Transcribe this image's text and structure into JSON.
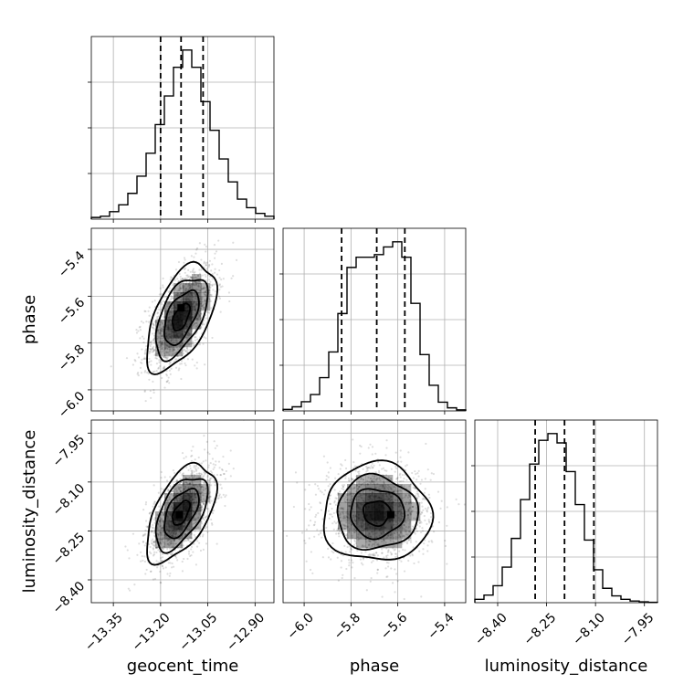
{
  "chart_data": {
    "type": "corner",
    "parameters": [
      {
        "name": "geocent_time",
        "label": "geocent_time",
        "ticks": [
          -13.35,
          -13.2,
          -13.05,
          -12.9
        ],
        "tick_labels": [
          "−13.35",
          "−13.20",
          "−13.05",
          "−12.90"
        ],
        "range": [
          -13.42,
          -12.84
        ],
        "quantiles": [
          -13.2,
          -13.135,
          -13.065
        ],
        "hist_edges_start": -13.42,
        "hist_bin_width": 0.029,
        "hist_counts": [
          0.3,
          0.5,
          1.3,
          2.5,
          4.5,
          7.5,
          11.5,
          16.5,
          21.5,
          26.5,
          29.5,
          26.5,
          20.5,
          15.5,
          10.5,
          6.5,
          3.5,
          2.0,
          1.0,
          0.5
        ]
      },
      {
        "name": "phase",
        "label": "phase",
        "ticks": [
          -6.0,
          -5.8,
          -5.6,
          -5.4
        ],
        "tick_labels": [
          "−6.0",
          "−5.8",
          "−5.6",
          "−5.4"
        ],
        "range": [
          -6.09,
          -5.31
        ],
        "quantiles": [
          -5.84,
          -5.69,
          -5.57
        ],
        "hist_edges_start": -6.09,
        "hist_bin_width": 0.039,
        "hist_counts": [
          0.3,
          0.8,
          1.8,
          3.2,
          6.5,
          11.5,
          19.0,
          28.0,
          30.0,
          30.0,
          30.5,
          32.0,
          33.0,
          30.0,
          21.0,
          11.0,
          5.0,
          1.7,
          0.6,
          0.2
        ]
      },
      {
        "name": "luminosity_distance",
        "label": "luminosity_distance",
        "ticks": [
          -8.4,
          -8.25,
          -8.1,
          -7.95
        ],
        "tick_labels": [
          "−8.40",
          "−8.25",
          "−8.10",
          "−7.95"
        ],
        "range": [
          -8.47,
          -7.91
        ],
        "quantiles": [
          -8.285,
          -8.195,
          -8.105
        ],
        "hist_edges_start": -8.47,
        "hist_bin_width": 0.028,
        "hist_counts": [
          0.4,
          0.9,
          2.0,
          4.2,
          7.6,
          12.2,
          16.4,
          19.2,
          20.0,
          18.9,
          15.5,
          11.6,
          7.4,
          3.9,
          1.7,
          0.8,
          0.4,
          0.2,
          0.1,
          0.05
        ]
      }
    ],
    "pairs": [
      {
        "x": "geocent_time",
        "y": "phase",
        "mean": [
          -13.135,
          -5.69
        ],
        "sd": [
          0.055,
          0.115
        ],
        "corr": 0.55,
        "peak": [
          -13.135,
          -5.65
        ]
      },
      {
        "x": "geocent_time",
        "y": "luminosity_distance",
        "mean": [
          -13.135,
          -8.195
        ],
        "sd": [
          0.055,
          0.075
        ],
        "corr": 0.55,
        "peak": [
          -13.14,
          -8.2
        ]
      },
      {
        "x": "phase",
        "y": "luminosity_distance",
        "mean": [
          -5.69,
          -8.195
        ],
        "sd": [
          0.115,
          0.075
        ],
        "corr": 0.0,
        "peak": [
          -5.63,
          -8.2
        ]
      }
    ],
    "contour_levels_sigma": [
      0.5,
      1.0,
      1.5,
      2.0
    ],
    "grid": true,
    "xlabels": [
      "geocent_time",
      "phase",
      "luminosity_distance"
    ],
    "ylabels": [
      "",
      "phase",
      "luminosity_distance"
    ]
  }
}
